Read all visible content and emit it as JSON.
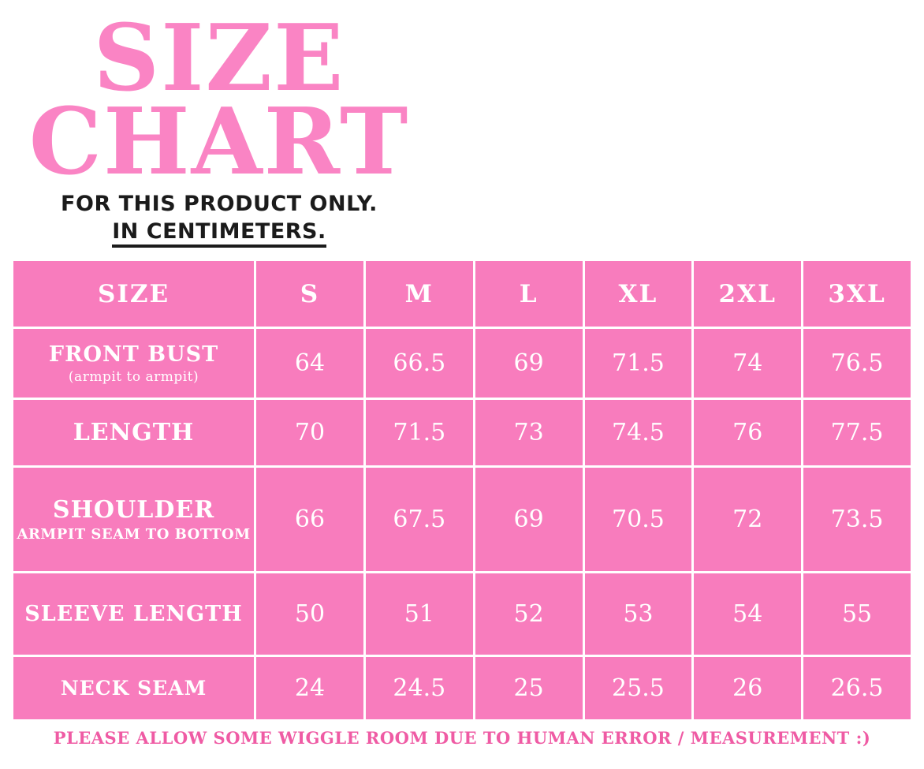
{
  "header": {
    "title_line1": "SIZE",
    "title_line2": "CHART",
    "subtitle_line1": "FOR THIS PRODUCT ONLY.",
    "subtitle_line2": "IN CENTIMETERS."
  },
  "footer": {
    "note": "PLEASE ALLOW SOME WIGGLE ROOM DUE TO HUMAN ERROR / MEASUREMENT :)"
  },
  "colors": {
    "pink-cell": "#f87cbd",
    "pink-title": "#fa84c4",
    "pink-note": "#ef5ba4",
    "ink": "#1b1b1b",
    "cell-text": "#ffffff",
    "grid": "#ffffff",
    "background": "#ffffff"
  },
  "chart_data": {
    "type": "table",
    "title": "SIZE CHART",
    "subtitle": "FOR THIS PRODUCT ONLY. IN CENTIMETERS.",
    "units": "centimeters",
    "columns": [
      "SIZE",
      "S",
      "M",
      "L",
      "XL",
      "2XL",
      "3XL"
    ],
    "rows": [
      {
        "label": "FRONT BUST",
        "sublabel": "(armpit to armpit)",
        "values": [
          64,
          66.5,
          69,
          71.5,
          74,
          76.5
        ]
      },
      {
        "label": "LENGTH",
        "sublabel": "",
        "values": [
          70,
          71.5,
          73,
          74.5,
          76,
          77.5
        ]
      },
      {
        "label": "SHOULDER",
        "sublabel": "ARMPIT SEAM TO BOTTOM",
        "values": [
          66,
          67.5,
          69,
          70.5,
          72,
          73.5
        ]
      },
      {
        "label": "SLEEVE LENGTH",
        "sublabel": "",
        "values": [
          50,
          51,
          52,
          53,
          54,
          55
        ]
      },
      {
        "label": "NECK SEAM",
        "sublabel": "",
        "values": [
          24,
          24.5,
          25,
          25.5,
          26,
          26.5
        ]
      }
    ],
    "note": "PLEASE ALLOW SOME WIGGLE ROOM DUE TO HUMAN ERROR / MEASUREMENT :)"
  }
}
